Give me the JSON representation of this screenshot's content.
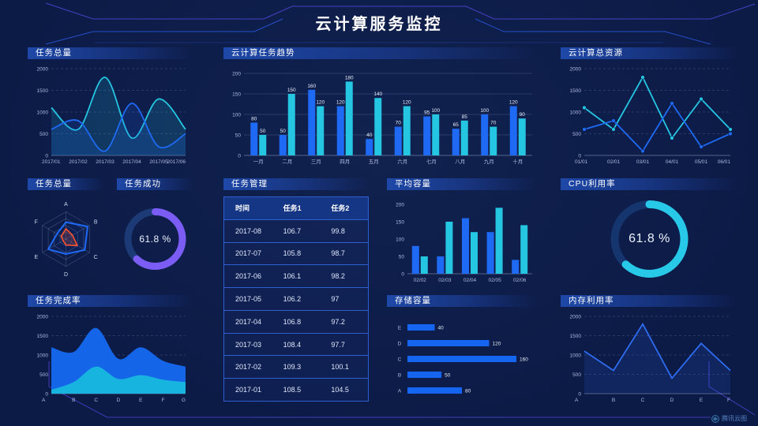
{
  "header": {
    "title": "云计算服务监控"
  },
  "watermark": {
    "label": "腾讯云图"
  },
  "panels": {
    "tasks_total_line": "任务总量",
    "task_trend": "云计算任务趋势",
    "total_resources": "云计算总资源",
    "tasks_radar": "任务总量",
    "task_success": "任务成功",
    "task_table": "任务管理",
    "avg_capacity": "平均容量",
    "cpu": "CPU利用率",
    "completion": "任务完成率",
    "storage": "存储容量",
    "memory": "内存利用率"
  },
  "colors": {
    "blue": "#1f6af5",
    "cyan": "#25c6e2",
    "purple": "#7b5cf5",
    "orange": "#ff5430"
  },
  "table": {
    "headers": [
      "时间",
      "任务1",
      "任务2"
    ],
    "rows": [
      [
        "2017-08",
        "106.7",
        "99.8"
      ],
      [
        "2017-07",
        "105.8",
        "98.7"
      ],
      [
        "2017-06",
        "106.1",
        "98.2"
      ],
      [
        "2017-05",
        "106.2",
        "97"
      ],
      [
        "2017-04",
        "106.8",
        "97.2"
      ],
      [
        "2017-03",
        "108.4",
        "97.7"
      ],
      [
        "2017-02",
        "109.3",
        "100.1"
      ],
      [
        "2017-01",
        "108.5",
        "104.5"
      ]
    ]
  },
  "chart_data": [
    {
      "id": "tasks-total",
      "type": "line",
      "title": "任务总量",
      "x": [
        "2017/01",
        "2017/02",
        "2017/03",
        "2017/04",
        "2017/05",
        "2017/06"
      ],
      "ylim": [
        0,
        2000
      ],
      "yticks": [
        0,
        500,
        1000,
        1500,
        2000
      ],
      "grid": "dashed",
      "series": [
        {
          "color": "#25c6e2",
          "values": [
            1100,
            600,
            1800,
            400,
            1300,
            600
          ],
          "smooth": true,
          "fill": 0.16
        },
        {
          "color": "#1f6af5",
          "values": [
            600,
            800,
            100,
            1200,
            200,
            500
          ],
          "smooth": true,
          "fill": 0.16
        }
      ]
    },
    {
      "id": "task-trend",
      "type": "bar",
      "title": "云计算任务趋势",
      "categories": [
        "一月",
        "二月",
        "三月",
        "四月",
        "五月",
        "六月",
        "七月",
        "八月",
        "九月",
        "十月"
      ],
      "ylim": [
        0,
        200
      ],
      "yticks": [
        0,
        50,
        100,
        150,
        200
      ],
      "grid": "solid",
      "labels": true,
      "series": [
        {
          "color": "#1f6af5",
          "values": [
            80,
            50,
            160,
            120,
            40,
            70,
            95,
            65,
            100,
            120
          ]
        },
        {
          "color": "#25c6e2",
          "values": [
            50,
            150,
            120,
            180,
            140,
            120,
            100,
            85,
            70,
            90
          ]
        }
      ]
    },
    {
      "id": "total-resources",
      "type": "line",
      "title": "云计算总资源",
      "x": [
        "01/01",
        "02/01",
        "03/01",
        "04/01",
        "05/01",
        "06/01"
      ],
      "ylim": [
        0,
        2000
      ],
      "yticks": [
        0,
        500,
        1000,
        1500,
        2000
      ],
      "grid": "dashed",
      "series": [
        {
          "color": "#25c6e2",
          "values": [
            1100,
            600,
            1800,
            400,
            1300,
            600
          ],
          "smooth": false,
          "fill": 0,
          "markers": true
        },
        {
          "color": "#1f6af5",
          "values": [
            600,
            800,
            100,
            1200,
            200,
            500
          ],
          "smooth": false,
          "fill": 0,
          "markers": true
        }
      ]
    },
    {
      "id": "tasks-radar",
      "type": "radar",
      "title": "任务总量",
      "axes": [
        "A",
        "B",
        "C",
        "D",
        "E",
        "F"
      ],
      "max": 100,
      "levels": 4,
      "series": [
        {
          "color": "#1f6af5",
          "values": [
            62,
            92,
            80,
            55,
            75,
            38
          ],
          "fill": 0.08,
          "width": 2
        },
        {
          "color": "#ff5430",
          "values": [
            38,
            28,
            48,
            22,
            12,
            20
          ],
          "fill": 0.18,
          "width": 1.6
        }
      ]
    },
    {
      "id": "task-success",
      "type": "donut",
      "title": "任务成功",
      "value": 61.8,
      "label": "61.8 %",
      "color": "#7b5cf5",
      "track": "#1c3a75"
    },
    {
      "id": "avg-capacity",
      "type": "bar",
      "title": "平均容量",
      "categories": [
        "02/02",
        "02/03",
        "02/04",
        "02/05",
        "02/06"
      ],
      "ylim": [
        0,
        200
      ],
      "yticks": [
        0,
        50,
        100,
        150,
        200
      ],
      "grid": "none",
      "labels": false,
      "series": [
        {
          "color": "#1f6af5",
          "values": [
            80,
            50,
            160,
            120,
            40
          ]
        },
        {
          "color": "#25c6e2",
          "values": [
            50,
            150,
            120,
            190,
            140
          ]
        }
      ]
    },
    {
      "id": "cpu",
      "type": "donut",
      "title": "CPU利用率",
      "value": 61.8,
      "label": "61.8 %",
      "color": "#27c8e8",
      "track": "#15356e"
    },
    {
      "id": "completion",
      "type": "line",
      "title": "任务完成率",
      "x": [
        "A",
        "B",
        "C",
        "D",
        "E",
        "F",
        "G"
      ],
      "ylim": [
        0,
        2000
      ],
      "yticks": [
        0,
        500,
        1000,
        1500,
        2000
      ],
      "grid": "dashed",
      "series": [
        {
          "color": "#1565e8",
          "values": [
            1200,
            1080,
            1700,
            900,
            1200,
            850,
            700
          ],
          "smooth": true,
          "fill": 1,
          "stroke": false
        },
        {
          "color": "#18b4e0",
          "values": [
            100,
            300,
            700,
            380,
            480,
            360,
            300
          ],
          "smooth": true,
          "fill": 1,
          "stroke": false
        }
      ]
    },
    {
      "id": "storage",
      "type": "hbar",
      "title": "存储容量",
      "categories": [
        "E",
        "D",
        "C",
        "B",
        "A"
      ],
      "values": [
        40,
        120,
        160,
        50,
        80
      ],
      "max": 160,
      "color": "#1565f0"
    },
    {
      "id": "memory",
      "type": "line",
      "title": "内存利用率",
      "x": [
        "A",
        "B",
        "C",
        "D",
        "E",
        "F"
      ],
      "ylim": [
        0,
        2000
      ],
      "yticks": [
        0,
        500,
        1000,
        1500,
        2000
      ],
      "grid": "dashed",
      "series": [
        {
          "color": "#2e6cf0",
          "values": [
            1100,
            600,
            1800,
            400,
            1300,
            600
          ],
          "smooth": false,
          "fill": 0.15
        }
      ]
    }
  ]
}
